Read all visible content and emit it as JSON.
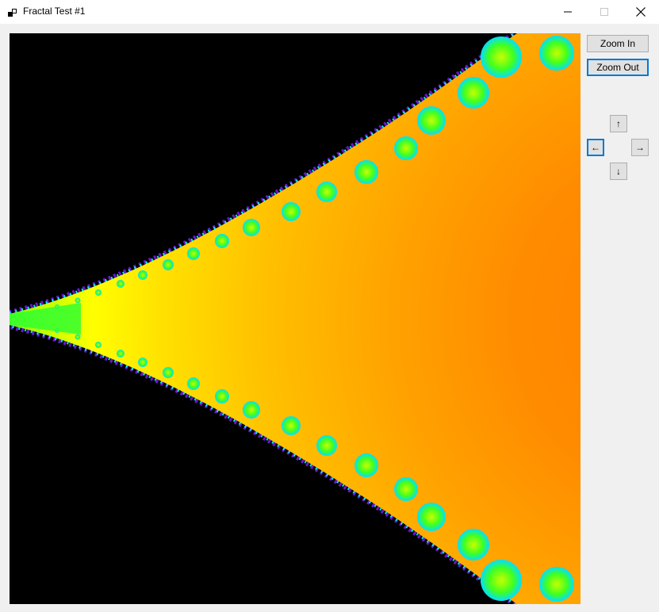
{
  "window": {
    "title": "Fractal Test #1",
    "app_icon": "windows-forms-icon"
  },
  "title_controls": {
    "minimize_icon": "minimize-icon",
    "maximize_icon": "maximize-icon",
    "close_icon": "close-icon"
  },
  "canvas": {
    "description_icon": "fractal-canvas",
    "colors": {
      "background": "#000000",
      "interior_far": "#ff8c00",
      "interior_mid": "#ffc800",
      "edge_yellow": "#ffff00",
      "edge_green": "#00ff40",
      "accent_cyan": "#00ffff",
      "accent_purple": "#8020ff"
    }
  },
  "controls": {
    "zoom_in_label": "Zoom In",
    "zoom_out_label": "Zoom Out",
    "up_label": "↑",
    "left_label": "←",
    "right_label": "→",
    "down_label": "↓"
  }
}
